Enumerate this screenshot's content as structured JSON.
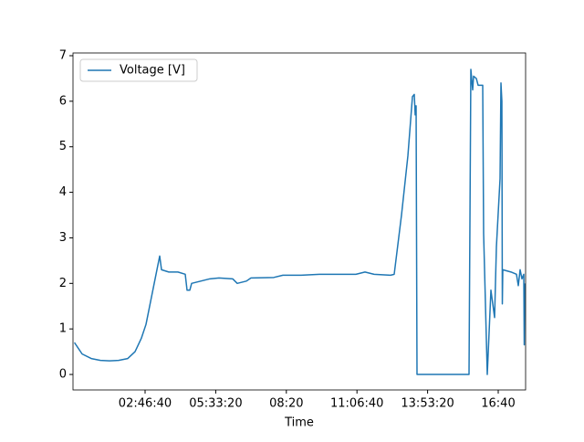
{
  "chart_data": {
    "type": "line",
    "xlabel": "Time",
    "x": [
      0,
      1085,
      2377,
      3670,
      4961,
      6253,
      7545,
      8579,
      9483,
      10129,
      10775,
      11421,
      12067,
      12326,
      13359,
      14651,
      15685,
      15943,
      16331,
      16589,
      17881,
      19173,
      20465,
      22403,
      23049,
      24341,
      24987,
      28217,
      29509,
      32093,
      34677,
      37261,
      39845,
      41137,
      42429,
      44755,
      45271,
      46305,
      47209,
      47855,
      48114,
      48243,
      48372,
      48501,
      55866,
      56124,
      56382,
      56511,
      56899,
      57157,
      57803,
      57932,
      58449,
      58966,
      59483,
      59741,
      60258,
      60388,
      60517,
      60581,
      60646,
      61809,
      62584,
      62843,
      63101,
      63360,
      63618,
      63683,
      63747
    ],
    "series": [
      {
        "name": "Voltage [V]",
        "color": "#1f77b4",
        "values": [
          0.7,
          0.45,
          0.35,
          0.31,
          0.3,
          0.31,
          0.35,
          0.5,
          0.8,
          1.1,
          1.6,
          2.1,
          2.6,
          2.3,
          2.25,
          2.25,
          2.2,
          1.85,
          1.85,
          2.0,
          2.05,
          2.1,
          2.12,
          2.1,
          2.0,
          2.05,
          2.12,
          2.13,
          2.18,
          2.18,
          2.2,
          2.2,
          2.2,
          2.25,
          2.2,
          2.18,
          2.2,
          3.5,
          4.8,
          6.1,
          6.15,
          5.7,
          5.9,
          0,
          0,
          6.7,
          6.25,
          6.55,
          6.5,
          6.35,
          6.35,
          3.1,
          0,
          1.85,
          1.25,
          2.8,
          4.3,
          6.4,
          6.0,
          1.55,
          2.3,
          2.25,
          2.2,
          1.95,
          2.3,
          2.1,
          2.2,
          0.65,
          2.0
        ]
      }
    ],
    "xlim": [
      -207,
      63876
    ],
    "xticks": [
      {
        "value": 10000,
        "label": "02:46:40"
      },
      {
        "value": 20000,
        "label": "05:33:20"
      },
      {
        "value": 30000,
        "label": "08:20"
      },
      {
        "value": 40000,
        "label": "11:06:40"
      },
      {
        "value": 50000,
        "label": "13:53:20"
      },
      {
        "value": 60000,
        "label": "16:40"
      }
    ],
    "ylim": [
      -0.34,
      7.06
    ],
    "yticks": [
      0,
      1,
      2,
      3,
      4,
      5,
      6,
      7
    ],
    "legend": "upper left"
  }
}
